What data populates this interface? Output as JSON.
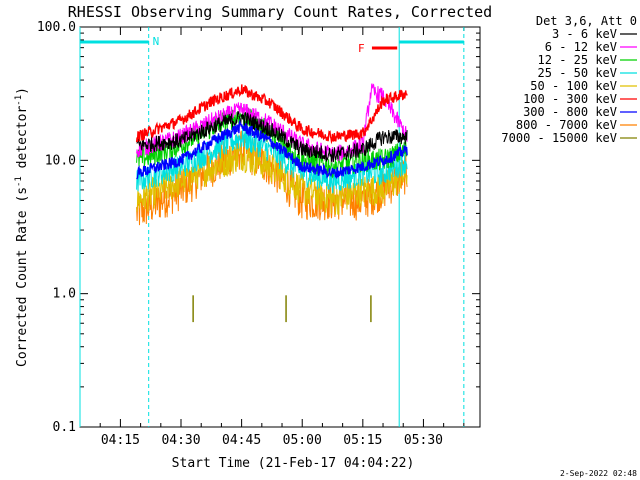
{
  "chart_data": {
    "type": "line",
    "title": "RHESSI Observing Summary Count Rates, Corrected",
    "xlabel": "Start Time (21-Feb-17 04:04:22)",
    "ylabel_main": "Corrected Count Rate (s",
    "ylabel_sup1": "-1",
    "ylabel_mid": " detector",
    "ylabel_sup2": "-1",
    "ylabel_end": ")",
    "yscale": "log",
    "ylim": [
      0.1,
      100.0
    ],
    "xlim": [
      "04:05",
      "05:44"
    ],
    "x_ticks": [
      "04:15",
      "04:30",
      "04:45",
      "05:00",
      "05:15",
      "05:30"
    ],
    "y_ticks": [
      "100.0",
      "10.0",
      "1.0",
      "0.1"
    ],
    "legend_header": "Det 3,6, Att 0",
    "legend_placement": "right",
    "footer_timestamp": "2-Sep-2022 02:48",
    "series": [
      {
        "name": "3 - 6 keV",
        "color": "#000000",
        "x": [
          "04:19",
          "04:30",
          "04:38",
          "04:45",
          "04:52",
          "05:00",
          "05:08",
          "05:15",
          "05:20",
          "05:26"
        ],
        "y": [
          13,
          14,
          18,
          21,
          17,
          12,
          11,
          12,
          15,
          15
        ]
      },
      {
        "name": "6 - 12 keV",
        "color": "#ff00ff",
        "x": [
          "04:19",
          "04:30",
          "04:38",
          "04:45",
          "04:52",
          "05:00",
          "05:08",
          "05:15",
          "05:17",
          "05:20",
          "05:26"
        ],
        "y": [
          12,
          15,
          20,
          24,
          19,
          13,
          11,
          13,
          33,
          30,
          15
        ]
      },
      {
        "name": "12 - 25 keV",
        "color": "#00d000",
        "x": [
          "04:19",
          "04:30",
          "04:38",
          "04:45",
          "04:52",
          "05:00",
          "05:08",
          "05:15",
          "05:20",
          "05:26"
        ],
        "y": [
          10,
          13,
          18,
          22,
          16,
          10,
          9,
          10,
          10,
          12
        ]
      },
      {
        "name": "25 - 50 keV",
        "color": "#00e0e0",
        "x": [
          "04:19",
          "04:30",
          "04:38",
          "04:45",
          "04:52",
          "05:00",
          "05:08",
          "05:15",
          "05:20",
          "05:26"
        ],
        "y": [
          7,
          9,
          12,
          15,
          12,
          8,
          7,
          8,
          8,
          10
        ]
      },
      {
        "name": "50 - 100 keV",
        "color": "#e0c000",
        "x": [
          "04:19",
          "04:30",
          "04:38",
          "04:45",
          "04:52",
          "05:00",
          "05:08",
          "05:15",
          "05:20",
          "05:26"
        ],
        "y": [
          5,
          7,
          9,
          11,
          9,
          6,
          5,
          6,
          6,
          8
        ]
      },
      {
        "name": "100 - 300 keV",
        "color": "#ff0000",
        "x": [
          "04:19",
          "04:30",
          "04:38",
          "04:45",
          "04:52",
          "05:00",
          "05:08",
          "05:15",
          "05:18",
          "05:20",
          "05:26"
        ],
        "y": [
          15,
          20,
          28,
          34,
          27,
          17,
          15,
          16,
          22,
          28,
          32
        ]
      },
      {
        "name": "300 - 800 keV",
        "color": "#0000ff",
        "x": [
          "04:19",
          "04:30",
          "04:38",
          "04:45",
          "04:52",
          "05:00",
          "05:08",
          "05:15",
          "05:20",
          "05:26"
        ],
        "y": [
          8,
          10,
          14,
          18,
          14,
          9,
          8,
          9,
          10,
          12
        ]
      },
      {
        "name": "800 - 7000 keV",
        "color": "#ff8000",
        "x": [
          "04:19",
          "04:30",
          "04:38",
          "04:45",
          "04:52",
          "05:00",
          "05:08",
          "05:15",
          "05:20",
          "05:26"
        ],
        "y": [
          4,
          6,
          9,
          12,
          9,
          5,
          5,
          5,
          6,
          8
        ]
      },
      {
        "name": "7000 - 15000 keV",
        "color": "#808000",
        "x": [
          "04:33",
          "04:56",
          "05:17"
        ],
        "y": [
          0.72,
          0.72,
          0.72
        ]
      }
    ],
    "annotations": [
      {
        "label": "N",
        "color": "#00e0e0",
        "x_start": "04:05",
        "x_end": "04:22"
      },
      {
        "label": "F",
        "color": "#ff0000",
        "x_start": "05:18",
        "x_end": "05:24"
      }
    ],
    "vertical_lines": [
      {
        "x": "04:05",
        "style": "solid",
        "color": "#00e0e0"
      },
      {
        "x": "04:22",
        "style": "dashed",
        "color": "#00e0e0"
      },
      {
        "x": "05:24",
        "style": "solid",
        "color": "#00e0e0"
      },
      {
        "x": "05:40",
        "style": "dashed",
        "color": "#00e0e0"
      }
    ],
    "top_bars": [
      {
        "x_start": "04:05",
        "x_end": "04:22",
        "color": "#00e0e0"
      },
      {
        "x_start": "05:24",
        "x_end": "05:40",
        "color": "#00e0e0"
      }
    ]
  }
}
